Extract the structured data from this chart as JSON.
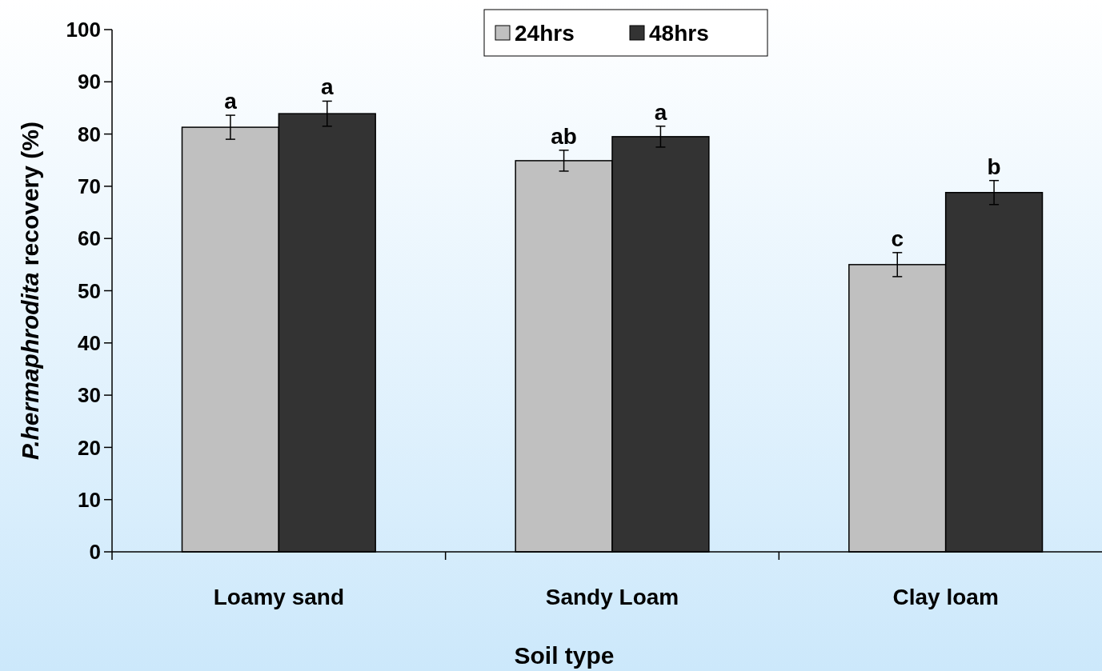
{
  "chart_data": {
    "type": "bar",
    "xlabel": "Soil type",
    "ylabel": "P.hermaphrodita recovery (%)",
    "categories": [
      "Loamy sand",
      "Sandy Loam",
      "Clay loam"
    ],
    "series": [
      {
        "name": "24hrs",
        "color": "#c0c0c0",
        "values": [
          81.3,
          74.9,
          55.0
        ],
        "errors": [
          2.3,
          2.0,
          2.3
        ],
        "value_labels": [
          "a",
          "ab",
          "c"
        ]
      },
      {
        "name": "48hrs",
        "color": "#333333",
        "values": [
          83.9,
          79.5,
          68.8
        ],
        "errors": [
          2.4,
          2.0,
          2.3
        ],
        "value_labels": [
          "a",
          "a",
          "b"
        ]
      }
    ],
    "ylim": [
      0,
      100
    ],
    "yticks": [
      0,
      10,
      20,
      30,
      40,
      50,
      60,
      70,
      80,
      90,
      100
    ],
    "grid": false,
    "legend": "top"
  }
}
